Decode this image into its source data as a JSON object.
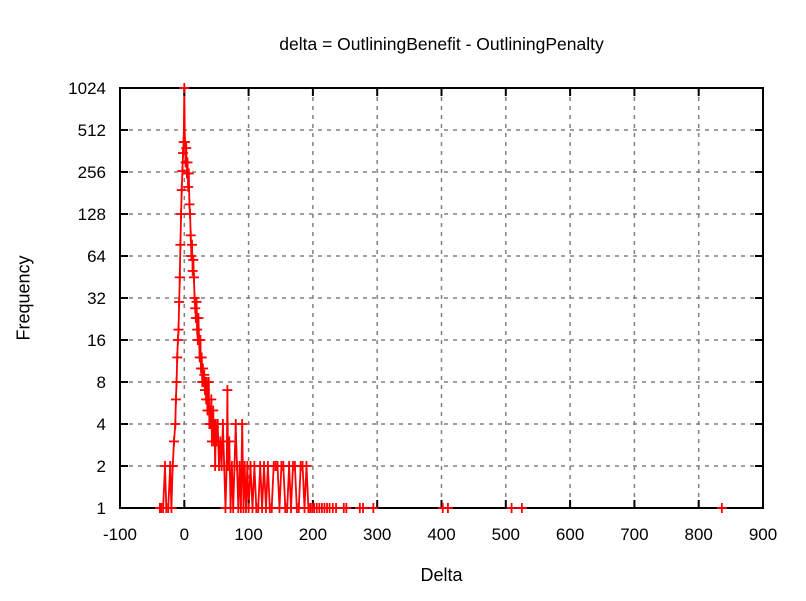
{
  "page": {
    "background": "#ffffff",
    "text_color": "#000000",
    "grid_color": "#808080",
    "border_color": "#000000"
  },
  "chart_data": {
    "type": "line",
    "style": "linespoints",
    "title": "delta = OutliningBenefit - OutliningPenalty",
    "xlabel": "Delta",
    "ylabel": "Frequency",
    "xlim": [
      -100,
      900
    ],
    "ylim": [
      1,
      1024
    ],
    "y_scale": "log2",
    "grid": "dashed",
    "legend": "none",
    "x_ticks": [
      -100,
      0,
      100,
      200,
      300,
      400,
      500,
      600,
      700,
      800,
      900
    ],
    "y_ticks": [
      1,
      2,
      4,
      8,
      16,
      32,
      64,
      128,
      256,
      512,
      1024
    ],
    "series": [
      {
        "name": "delta-frequency",
        "color": "#ff0000",
        "marker": "plus",
        "points": [
          [
            -38,
            1
          ],
          [
            -36,
            1
          ],
          [
            -33,
            1
          ],
          [
            -30,
            2
          ],
          [
            -28,
            1
          ],
          [
            -25,
            1
          ],
          [
            -22,
            2
          ],
          [
            -20,
            1
          ],
          [
            -18,
            2
          ],
          [
            -16,
            3
          ],
          [
            -14,
            4
          ],
          [
            -13,
            6
          ],
          [
            -12,
            8
          ],
          [
            -11,
            12
          ],
          [
            -10,
            16
          ],
          [
            -9,
            19
          ],
          [
            -8,
            30
          ],
          [
            -7,
            45
          ],
          [
            -6,
            77
          ],
          [
            -5,
            128
          ],
          [
            -4,
            190
          ],
          [
            -3,
            260
          ],
          [
            -2,
            350
          ],
          [
            -1,
            420
          ],
          [
            0,
            1024
          ],
          [
            1,
            420
          ],
          [
            2,
            300
          ],
          [
            3,
            380
          ],
          [
            4,
            250
          ],
          [
            5,
            300
          ],
          [
            6,
            200
          ],
          [
            7,
            250
          ],
          [
            8,
            150
          ],
          [
            9,
            128
          ],
          [
            10,
            90
          ],
          [
            11,
            64
          ],
          [
            12,
            77
          ],
          [
            13,
            50
          ],
          [
            14,
            60
          ],
          [
            15,
            45
          ],
          [
            16,
            32
          ],
          [
            17,
            27
          ],
          [
            18,
            23
          ],
          [
            19,
            30
          ],
          [
            20,
            19
          ],
          [
            21,
            16
          ],
          [
            22,
            23
          ],
          [
            23,
            16
          ],
          [
            24,
            12
          ],
          [
            25,
            16
          ],
          [
            26,
            10
          ],
          [
            27,
            12
          ],
          [
            28,
            8
          ],
          [
            29,
            10
          ],
          [
            30,
            8
          ],
          [
            31,
            9
          ],
          [
            32,
            7
          ],
          [
            33,
            8
          ],
          [
            34,
            6
          ],
          [
            35,
            8
          ],
          [
            36,
            5
          ],
          [
            37,
            6
          ],
          [
            38,
            8
          ],
          [
            39,
            4
          ],
          [
            40,
            5
          ],
          [
            41,
            4
          ],
          [
            42,
            6
          ],
          [
            43,
            3
          ],
          [
            44,
            4
          ],
          [
            45,
            5
          ],
          [
            46,
            3
          ],
          [
            47,
            4
          ],
          [
            48,
            2
          ],
          [
            49,
            4
          ],
          [
            50,
            3
          ],
          [
            52,
            4
          ],
          [
            54,
            2
          ],
          [
            56,
            3
          ],
          [
            58,
            2
          ],
          [
            60,
            4
          ],
          [
            62,
            2
          ],
          [
            64,
            1
          ],
          [
            66,
            2
          ],
          [
            67,
            7
          ],
          [
            68,
            2
          ],
          [
            70,
            3
          ],
          [
            72,
            1
          ],
          [
            74,
            2
          ],
          [
            76,
            1
          ],
          [
            78,
            2
          ],
          [
            80,
            4
          ],
          [
            82,
            2
          ],
          [
            84,
            1
          ],
          [
            86,
            2
          ],
          [
            88,
            1
          ],
          [
            90,
            4
          ],
          [
            92,
            1
          ],
          [
            94,
            2
          ],
          [
            96,
            1
          ],
          [
            98,
            2
          ],
          [
            100,
            1
          ],
          [
            103,
            2
          ],
          [
            106,
            1
          ],
          [
            109,
            2
          ],
          [
            112,
            1
          ],
          [
            115,
            1
          ],
          [
            118,
            2
          ],
          [
            121,
            1
          ],
          [
            124,
            2
          ],
          [
            127,
            1
          ],
          [
            130,
            2
          ],
          [
            133,
            1
          ],
          [
            136,
            1
          ],
          [
            139,
            2
          ],
          [
            142,
            2
          ],
          [
            145,
            2
          ],
          [
            148,
            1
          ],
          [
            151,
            2
          ],
          [
            154,
            2
          ],
          [
            157,
            1
          ],
          [
            160,
            1
          ],
          [
            163,
            2
          ],
          [
            166,
            1
          ],
          [
            169,
            2
          ],
          [
            172,
            2
          ],
          [
            175,
            1
          ],
          [
            178,
            1
          ],
          [
            181,
            2
          ],
          [
            184,
            2
          ],
          [
            187,
            1
          ],
          [
            190,
            2
          ],
          [
            193,
            1
          ],
          [
            196,
            1
          ],
          [
            199,
            1
          ],
          [
            202,
            1
          ],
          [
            206,
            1
          ],
          [
            210,
            1
          ],
          [
            214,
            1
          ],
          [
            218,
            1
          ],
          [
            222,
            1
          ],
          [
            226,
            1
          ],
          [
            231,
            1
          ],
          [
            236,
            1
          ],
          [
            248,
            1
          ],
          [
            252,
            1
          ],
          [
            273,
            1
          ],
          [
            278,
            1
          ],
          [
            294,
            1
          ],
          [
            402,
            1
          ],
          [
            410,
            1
          ],
          [
            509,
            1
          ],
          [
            525,
            1
          ],
          [
            836,
            1
          ]
        ]
      }
    ]
  }
}
